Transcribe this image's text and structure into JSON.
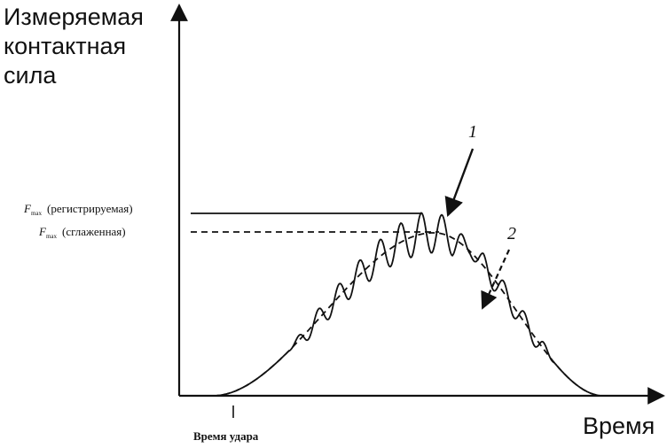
{
  "chart_data": {
    "type": "line",
    "ylabel_lines": [
      "Измеряемая",
      "контактная",
      "сила"
    ],
    "xlabel": "Время",
    "x_tick_label": "Время удара",
    "level_labels": {
      "registered_sub": "max",
      "registered": "(регистрируемая)",
      "smoothed_sub": "max",
      "smoothed": "(сглаженная)",
      "f_symbol": "F"
    },
    "annotations": [
      {
        "label": "1",
        "arrow": "solid"
      },
      {
        "label": "2",
        "arrow": "dashed"
      }
    ],
    "series": [
      {
        "style": "solid"
      },
      {
        "style": "dashed"
      }
    ],
    "grid": false
  }
}
